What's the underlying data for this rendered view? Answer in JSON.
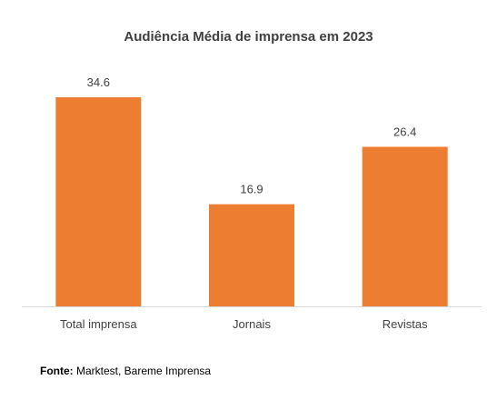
{
  "chart_data": {
    "type": "bar",
    "title": "Audiência Média de imprensa em 2023",
    "categories": [
      "Total imprensa",
      "Jornais",
      "Revistas"
    ],
    "values": [
      34.6,
      16.9,
      26.4
    ],
    "data_labels": [
      "34.6",
      "16.9",
      "26.4"
    ],
    "xlabel": "",
    "ylabel": "",
    "ylim": [
      0,
      34.6
    ],
    "grid": false,
    "legend": "none",
    "colors": {
      "bar": "#ED7D31",
      "label": "#404040",
      "axis": "#D9D9D9"
    }
  },
  "source": {
    "label": "Fonte:",
    "text": "Marktest, Bareme Imprensa"
  }
}
